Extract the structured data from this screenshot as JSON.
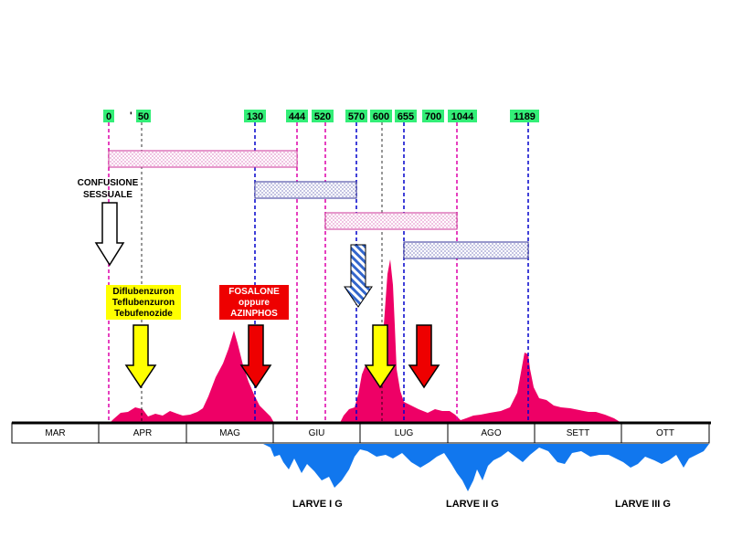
{
  "degree_days": [
    "0",
    "50",
    "130",
    "444",
    "520",
    "570",
    "600",
    "655",
    "700",
    "1044",
    "1189"
  ],
  "stray_mark": "'",
  "months": [
    "MAR",
    "APR",
    "MAG",
    "GIU",
    "LUG",
    "AGO",
    "SETT",
    "OTT"
  ],
  "notes": {
    "confusion": [
      "CONFUSIONE",
      "SESSUALE"
    ],
    "igr": [
      "Diflubenzuron",
      "Teflubenzuron",
      "Tebufenozide"
    ],
    "op": [
      "FOSALONE",
      "oppure",
      "AZINPHOS"
    ]
  },
  "larvae": [
    "LARVE I G",
    "LARVE II G",
    "LARVE III G"
  ],
  "colors": {
    "dd_box": "#33ee77",
    "flight": "#ee0066",
    "larvae": "#1177ee",
    "magenta_line": "#dd00aa",
    "blue_line": "#0000cc",
    "igr_box": "#ffff00",
    "op_box": "#ee0000",
    "igr_arrow": "#ffff00",
    "op_arrow": "#ee0000"
  }
}
